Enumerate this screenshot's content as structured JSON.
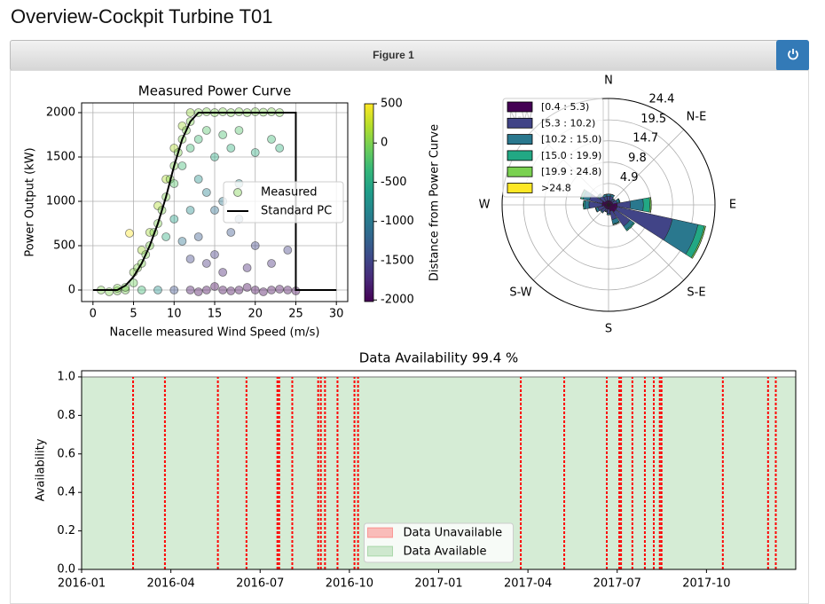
{
  "page": {
    "title": "Overview-Cockpit Turbine T01",
    "figure_label": "Figure 1"
  },
  "chart_data": [
    {
      "type": "scatter",
      "title": "Measured Power Curve",
      "x_label": "Nacelle measured Wind Speed (m/s)",
      "y_label": "Power Output (kW)",
      "xlim": [
        -1.4,
        31.4
      ],
      "ylim": [
        -130,
        2110
      ],
      "xticks": [
        0,
        5,
        10,
        15,
        20,
        25,
        30
      ],
      "yticks": [
        0,
        500,
        1000,
        1500,
        2000
      ],
      "grid": true,
      "legend": "center right",
      "series": [
        {
          "name": "Measured",
          "colormap": "viridis",
          "x": [
            1,
            2,
            3,
            4,
            6,
            8,
            3,
            4,
            5,
            5,
            5.5,
            6,
            6,
            6.5,
            7,
            7,
            7.5,
            8,
            8,
            8.5,
            9,
            9,
            9.5,
            10,
            10,
            10.5,
            11,
            11,
            11.5,
            12,
            12,
            13,
            14,
            15,
            16,
            17,
            18,
            19,
            20,
            21,
            22,
            23,
            10,
            11,
            12,
            13,
            14,
            15,
            16,
            17,
            18,
            20,
            22,
            13,
            14,
            15,
            16,
            12,
            17,
            18,
            15,
            14,
            19,
            20,
            22,
            24,
            16,
            13,
            11,
            12,
            18,
            23,
            9,
            10,
            10,
            12,
            14,
            16,
            18,
            20,
            22,
            24,
            13,
            17,
            19,
            21,
            23,
            25,
            15,
            4.5
          ],
          "values": [
            0,
            -20,
            -10,
            0,
            0,
            0,
            20,
            30,
            80,
            200,
            250,
            300,
            450,
            400,
            500,
            650,
            650,
            750,
            950,
            900,
            1050,
            1250,
            1250,
            1400,
            1600,
            1550,
            1700,
            1850,
            1800,
            1900,
            2000,
            2000,
            2010,
            2000,
            2010,
            2000,
            2010,
            2000,
            2010,
            2005,
            2010,
            2000,
            1200,
            1400,
            1600,
            1700,
            1800,
            1500,
            1750,
            1600,
            1800,
            1550,
            1700,
            1250,
            1100,
            900,
            1000,
            900,
            650,
            800,
            400,
            300,
            250,
            500,
            300,
            450,
            200,
            600,
            550,
            350,
            1200,
            1600,
            600,
            800,
            0,
            0,
            0,
            0,
            0,
            0,
            0,
            0,
            -20,
            -10,
            30,
            -20,
            10,
            -10,
            40,
            640
          ],
          "c": [
            0,
            0,
            0,
            -30,
            -300,
            -750,
            0,
            -20,
            -70,
            50,
            20,
            0,
            150,
            0,
            0,
            150,
            0,
            0,
            200,
            0,
            0,
            200,
            0,
            0,
            200,
            0,
            0,
            150,
            0,
            0,
            100,
            0,
            0,
            0,
            0,
            0,
            0,
            0,
            0,
            0,
            0,
            0,
            -200,
            -300,
            -300,
            -300,
            -200,
            -500,
            -250,
            -400,
            -200,
            -450,
            -300,
            -750,
            -900,
            -1100,
            -1000,
            -800,
            -1350,
            -1200,
            -1600,
            -1650,
            -1750,
            -1500,
            -1700,
            -1550,
            -1800,
            -1300,
            -1050,
            -1500,
            -800,
            -400,
            -450,
            -600,
            -1400,
            -1900,
            -2000,
            -2000,
            -2000,
            -2000,
            -2000,
            -2000,
            -2000,
            -2000,
            -2000,
            -2000,
            -2000,
            -2000,
            -2000,
            500
          ]
        },
        {
          "name": "Standard PC",
          "color": "#000000",
          "x": [
            0,
            3,
            4,
            5,
            6,
            7,
            8,
            9,
            10,
            11,
            12,
            13,
            25,
            25,
            30
          ],
          "values": [
            0,
            0,
            50,
            150,
            300,
            500,
            750,
            1050,
            1400,
            1700,
            1900,
            2000,
            2000,
            0,
            0
          ]
        }
      ],
      "colorbar": {
        "label": "Distance from Power Curve",
        "clim": [
          -2020,
          500
        ],
        "ticks": [
          500,
          0,
          -500,
          -1000,
          -1500,
          -2000
        ]
      }
    },
    {
      "type": "windrose",
      "x": [
        0,
        22.5,
        45,
        67.5,
        90,
        112.5,
        135,
        157.5,
        180,
        202.5,
        225,
        247.5,
        270,
        292.5,
        315,
        337.5
      ],
      "rlim": [
        0,
        24.4
      ],
      "rticks": [
        4.9,
        9.8,
        14.7,
        19.5,
        24.4
      ],
      "thetaticks": [
        {
          "value": 0,
          "label": "N"
        },
        {
          "value": 45,
          "label": "N-E"
        },
        {
          "value": 90,
          "label": "E"
        },
        {
          "value": 135,
          "label": "S-E"
        },
        {
          "value": 180,
          "label": "S"
        },
        {
          "value": 225,
          "label": "S-W"
        },
        {
          "value": 270,
          "label": "W"
        },
        {
          "value": 315,
          "label": "N-W"
        }
      ],
      "legend": "upper left",
      "series": [
        {
          "name": "[0.4 : 5.3)",
          "color": "#440154",
          "values": [
            1,
            1,
            1,
            1,
            2,
            2,
            2,
            1.5,
            1,
            1,
            1,
            1,
            1.5,
            1.5,
            1,
            1
          ]
        },
        {
          "name": "[5.3 : 10.2)",
          "color": "#414487",
          "values": [
            1,
            1,
            0.5,
            1,
            3,
            13,
            4,
            2,
            1,
            0.5,
            1,
            1.5,
            3,
            3,
            1.5,
            1
          ]
        },
        {
          "name": "[10.2 : 15.0)",
          "color": "#2a788e",
          "values": [
            0.5,
            0.5,
            0.3,
            0.5,
            3,
            6,
            1,
            1,
            0.3,
            0.2,
            0.3,
            0.5,
            1,
            1.5,
            0.5,
            0.5
          ]
        },
        {
          "name": "[15.0 : 19.9)",
          "color": "#22a884",
          "values": [
            0,
            0,
            0,
            0.2,
            1.5,
            1.5,
            0.3,
            0.2,
            0,
            0,
            0,
            0.1,
            0.3,
            0.5,
            0.2,
            0
          ]
        },
        {
          "name": "[19.9 : 24.8)",
          "color": "#7ad151",
          "values": [
            0,
            0,
            0,
            0,
            0.3,
            0.3,
            0,
            0,
            0,
            0,
            0,
            0,
            0,
            0.1,
            0,
            0
          ]
        },
        {
          "name": ">24.8",
          "color": "#fde725",
          "values": [
            0,
            0,
            0,
            0,
            0,
            0,
            0,
            0,
            0,
            0,
            0,
            0,
            0,
            0,
            0,
            0
          ]
        }
      ]
    },
    {
      "type": "area",
      "title": "Data Availability 99.4 %",
      "y_label": "Availability",
      "xlim": [
        0,
        24
      ],
      "ylim": [
        0,
        1.032
      ],
      "xticks": [
        {
          "value": 0,
          "label": "2016-01"
        },
        {
          "value": 3,
          "label": "2016-04"
        },
        {
          "value": 6,
          "label": "2016-07"
        },
        {
          "value": 9,
          "label": "2016-10"
        },
        {
          "value": 12,
          "label": "2017-01"
        },
        {
          "value": 15,
          "label": "2017-04"
        },
        {
          "value": 18,
          "label": "2017-07"
        },
        {
          "value": 21,
          "label": "2017-10"
        }
      ],
      "yticks": [
        {
          "value": 0,
          "label": "0.0"
        },
        0.2,
        0.4,
        0.6,
        0.8,
        {
          "value": 1,
          "label": "1.0"
        }
      ],
      "legend": "lower center",
      "series": [
        {
          "name": "Data Unavailable",
          "color": "#ff0000",
          "x": [
            1.73,
            2.8,
            4.58,
            5.54,
            6.58,
            6.64,
            7.08,
            7.95,
            8.04,
            8.18,
            8.6,
            9.17,
            9.29,
            14.76,
            16.22,
            17.65,
            18.07,
            18.13,
            18.51,
            18.93,
            19.23,
            19.43,
            19.49,
            21.55,
            23.07,
            23.33
          ],
          "values": [
            1,
            1,
            1,
            1,
            1,
            1,
            1,
            1,
            1,
            1,
            1,
            1,
            1,
            1,
            1,
            1,
            1,
            1,
            1,
            1,
            1,
            1,
            1,
            1,
            1,
            1
          ]
        },
        {
          "name": "Data Available",
          "color": "#2ca02c",
          "x": [
            0,
            24
          ],
          "values": [
            1,
            1
          ]
        }
      ]
    }
  ]
}
